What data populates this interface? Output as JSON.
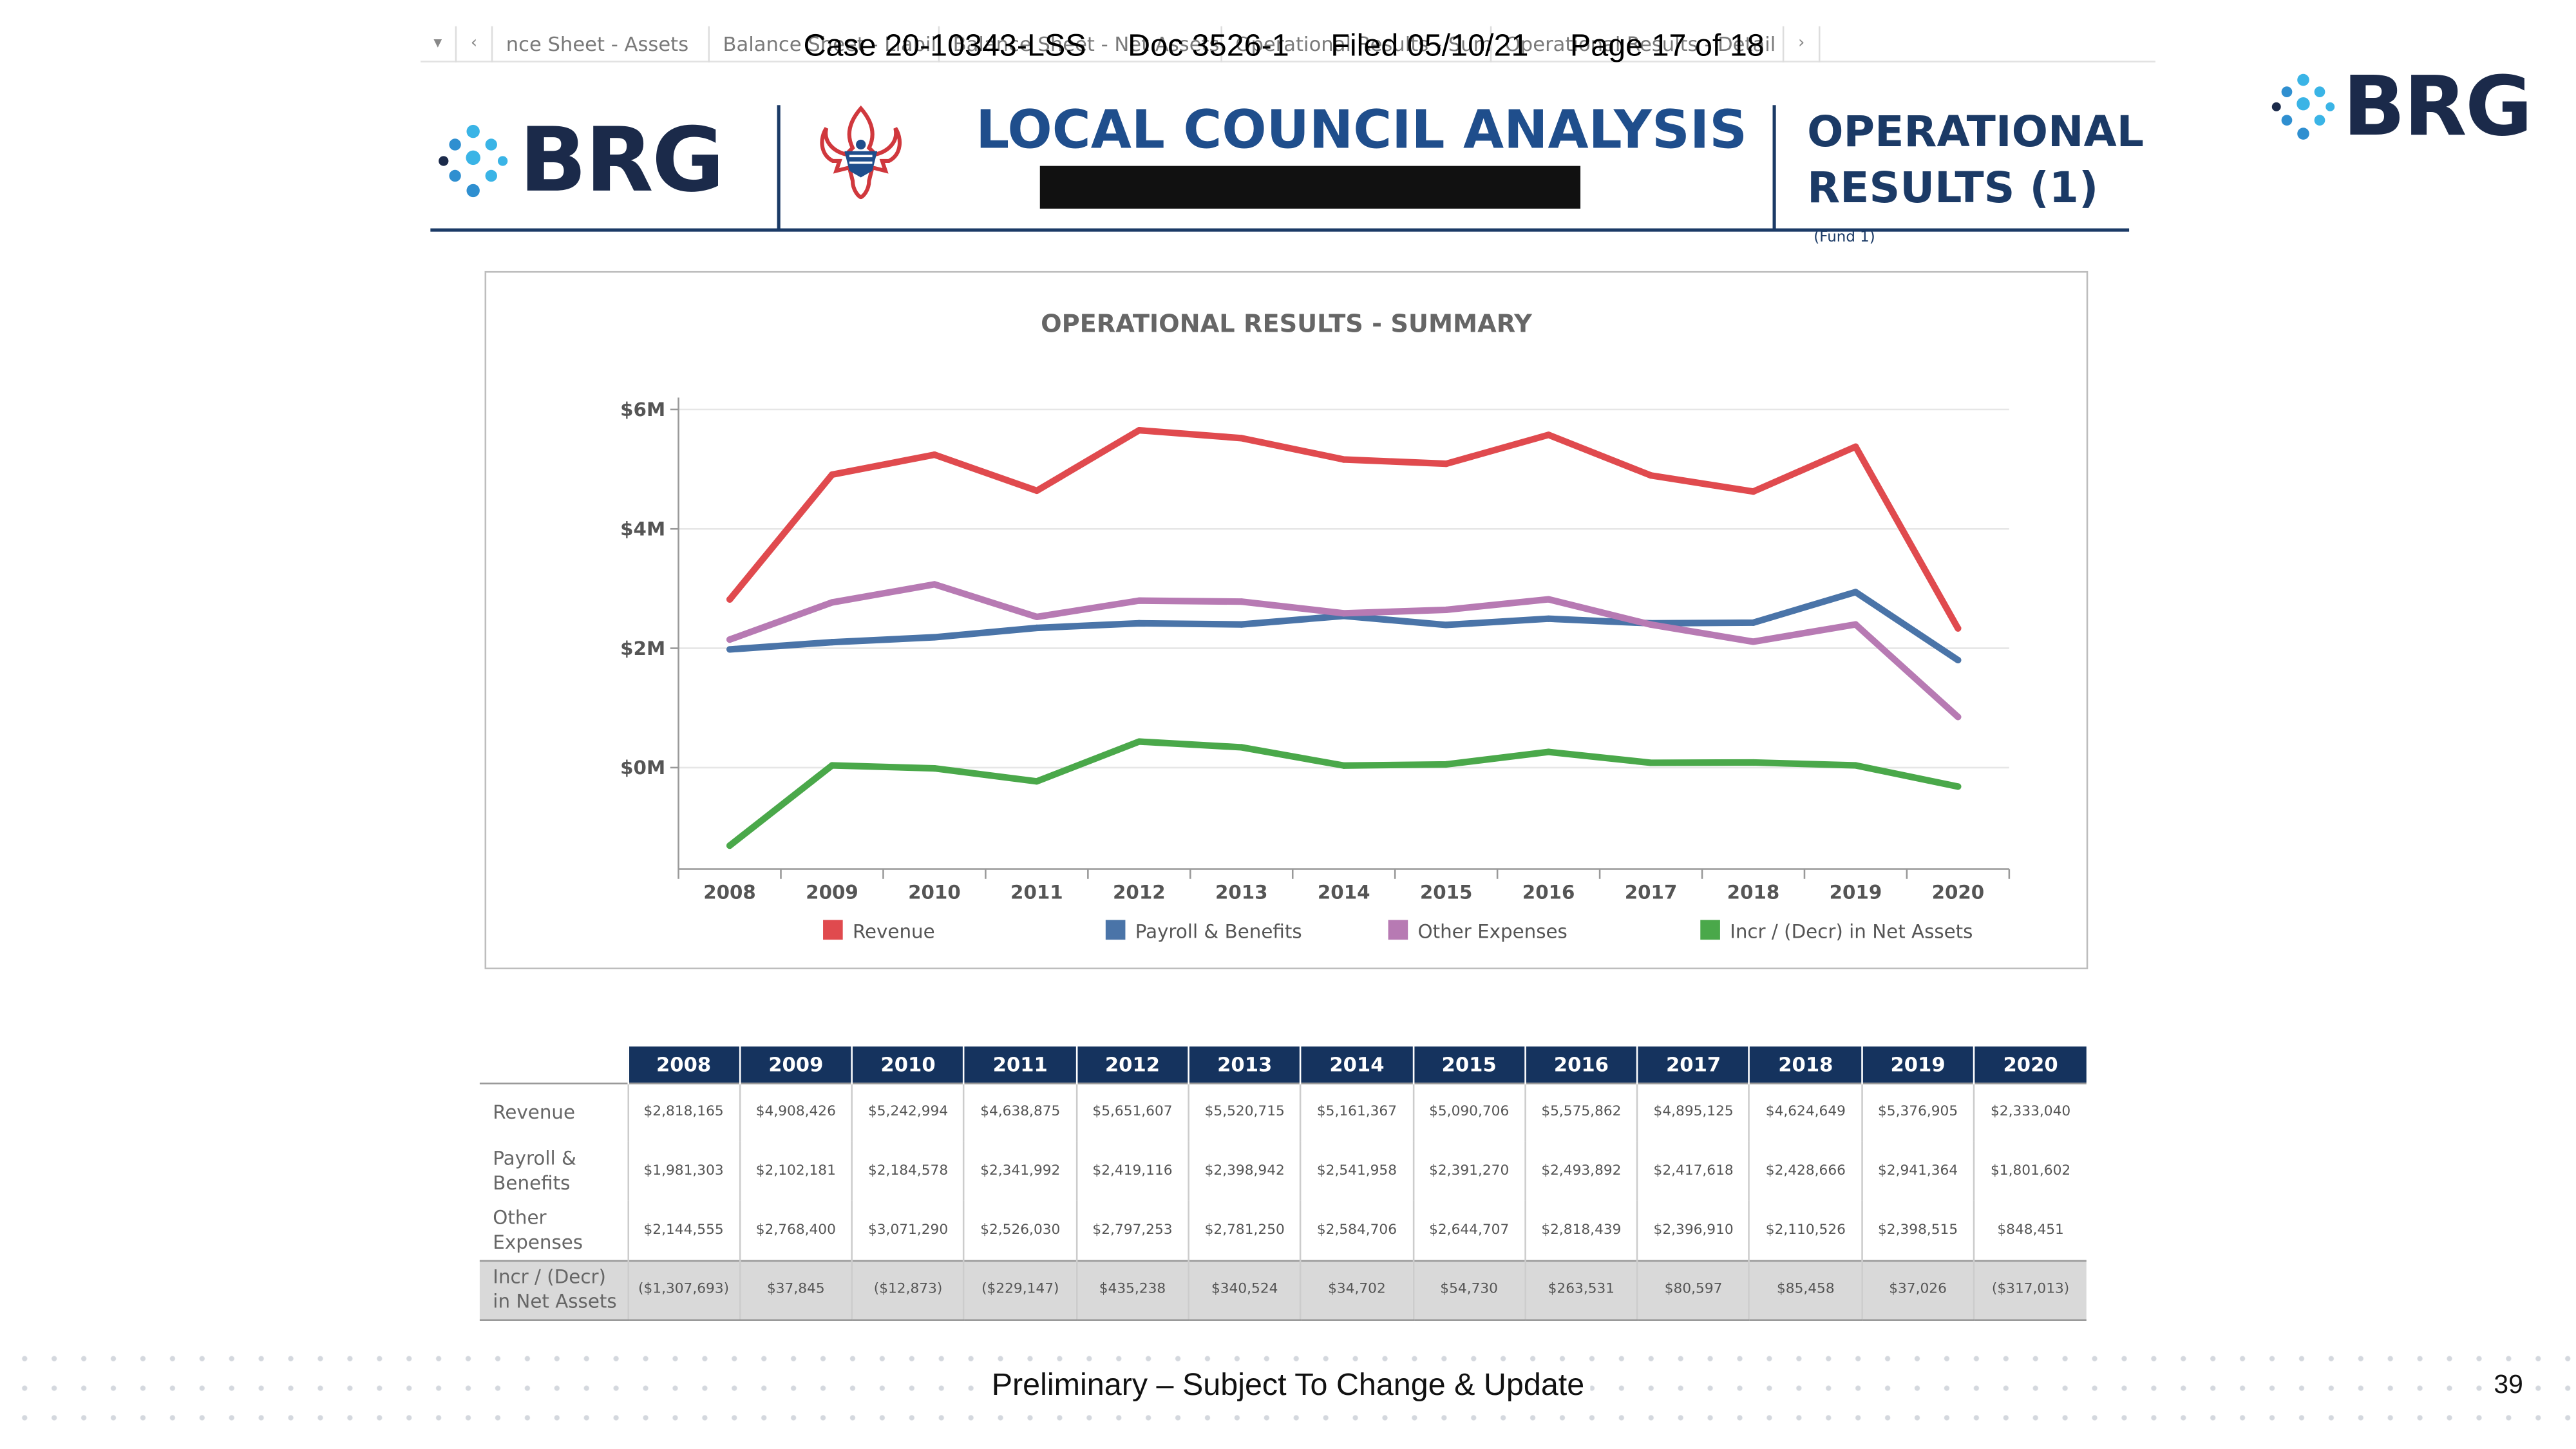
{
  "case_header": {
    "case": "Case 20-10343-LSS",
    "doc": "Doc 3526-1",
    "filed": "Filed 05/10/21",
    "page": "Page 17 of 18"
  },
  "tabs": [
    "nce Sheet - Assets",
    "Balance Sheet - Liabilities",
    "Balance Sheet - Net Assets",
    "Operational Results - Summary",
    "Operational Results - Detail"
  ],
  "header": {
    "brand": "BRG",
    "title": "LOCAL COUNCIL ANALYSIS",
    "section_line1": "OPERATIONAL",
    "section_line2": "RESULTS (1)",
    "section_note": "(Fund 1)"
  },
  "colors": {
    "navy": "#1b2a4a",
    "brand_blue": "#1f4e8c",
    "header_cell": "#15335e",
    "revenue": "#e04a4e",
    "payroll": "#4a74a8",
    "other": "#b77ab3",
    "net": "#4aa84a"
  },
  "chart_data": {
    "type": "line",
    "title": "OPERATIONAL RESULTS - SUMMARY",
    "categories": [
      "2008",
      "2009",
      "2010",
      "2011",
      "2012",
      "2013",
      "2014",
      "2015",
      "2016",
      "2017",
      "2018",
      "2019",
      "2020"
    ],
    "ylim": [
      -1700000,
      6200000
    ],
    "yticks": [
      {
        "value": 6000000,
        "label": "$6M"
      },
      {
        "value": 4000000,
        "label": "$4M"
      },
      {
        "value": 2000000,
        "label": "$2M"
      },
      {
        "value": 0,
        "label": "$0M"
      }
    ],
    "grid": true,
    "legend_position": "bottom",
    "series": [
      {
        "name": "Revenue",
        "color": "#e04a4e",
        "values": [
          2818165,
          4908426,
          5242994,
          4638875,
          5651607,
          5520715,
          5161367,
          5090706,
          5575862,
          4895125,
          4624649,
          5376905,
          2333040
        ]
      },
      {
        "name": "Payroll & Benefits",
        "color": "#4a74a8",
        "values": [
          1981303,
          2102181,
          2184578,
          2341992,
          2419116,
          2398942,
          2541958,
          2391270,
          2493892,
          2417618,
          2428666,
          2941364,
          1801602
        ]
      },
      {
        "name": "Other Expenses",
        "color": "#b77ab3",
        "values": [
          2144555,
          2768400,
          3071290,
          2526030,
          2797253,
          2781250,
          2584706,
          2644707,
          2818439,
          2396910,
          2110526,
          2398515,
          848451
        ]
      },
      {
        "name": "Incr / (Decr) in Net Assets",
        "color": "#4aa84a",
        "values": [
          -1307693,
          37845,
          -12873,
          -229147,
          435238,
          340524,
          34702,
          54730,
          263531,
          80597,
          85458,
          37026,
          -317013
        ]
      }
    ]
  },
  "table": {
    "years": [
      "2008",
      "2009",
      "2010",
      "2011",
      "2012",
      "2013",
      "2014",
      "2015",
      "2016",
      "2017",
      "2018",
      "2019",
      "2020"
    ],
    "rows": [
      {
        "label": "Revenue",
        "values": [
          "$2,818,165",
          "$4,908,426",
          "$5,242,994",
          "$4,638,875",
          "$5,651,607",
          "$5,520,715",
          "$5,161,367",
          "$5,090,706",
          "$5,575,862",
          "$4,895,125",
          "$4,624,649",
          "$5,376,905",
          "$2,333,040"
        ]
      },
      {
        "label": "Payroll & Benefits",
        "values": [
          "$1,981,303",
          "$2,102,181",
          "$2,184,578",
          "$2,341,992",
          "$2,419,116",
          "$2,398,942",
          "$2,541,958",
          "$2,391,270",
          "$2,493,892",
          "$2,417,618",
          "$2,428,666",
          "$2,941,364",
          "$1,801,602"
        ]
      },
      {
        "label": "Other Expenses",
        "values": [
          "$2,144,555",
          "$2,768,400",
          "$3,071,290",
          "$2,526,030",
          "$2,797,253",
          "$2,781,250",
          "$2,584,706",
          "$2,644,707",
          "$2,818,439",
          "$2,396,910",
          "$2,110,526",
          "$2,398,515",
          "$848,451"
        ]
      },
      {
        "label": "Incr / (Decr) in Net Assets",
        "values": [
          "($1,307,693)",
          "$37,845",
          "($12,873)",
          "($229,147)",
          "$435,238",
          "$340,524",
          "$34,702",
          "$54,730",
          "$263,531",
          "$80,597",
          "$85,458",
          "$37,026",
          "($317,013)"
        ]
      }
    ]
  },
  "footer": {
    "note": "Preliminary – Subject To Change & Update",
    "page_number": "39"
  }
}
